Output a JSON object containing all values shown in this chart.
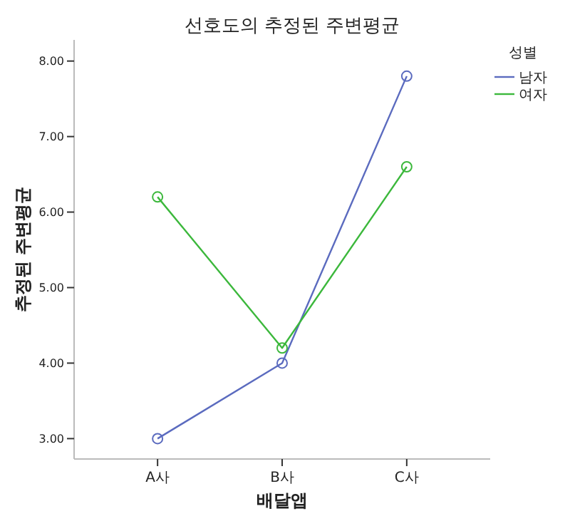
{
  "chart_data": {
    "type": "line",
    "title": "선호도의 추정된 주변평균",
    "xlabel": "배달앱",
    "ylabel": "추정된 주변평균",
    "legend_title": "성별",
    "categories": [
      "A사",
      "B사",
      "C사"
    ],
    "series": [
      {
        "name": "남자",
        "color": "#5b6bbf",
        "values": [
          3.0,
          4.0,
          7.8
        ]
      },
      {
        "name": "여자",
        "color": "#3cb83c",
        "values": [
          6.2,
          4.2,
          6.6
        ]
      }
    ],
    "ylim": [
      2.73,
      8.28
    ],
    "yticks": [
      {
        "value": 3,
        "label": "3.00"
      },
      {
        "value": 4,
        "label": "4.00"
      },
      {
        "value": 5,
        "label": "5.00"
      },
      {
        "value": 6,
        "label": "6.00"
      },
      {
        "value": 7,
        "label": "7.00"
      },
      {
        "value": 8,
        "label": "8.00"
      }
    ],
    "marker": "circle",
    "line_style": "solid",
    "legend": "top right",
    "grid": false
  }
}
